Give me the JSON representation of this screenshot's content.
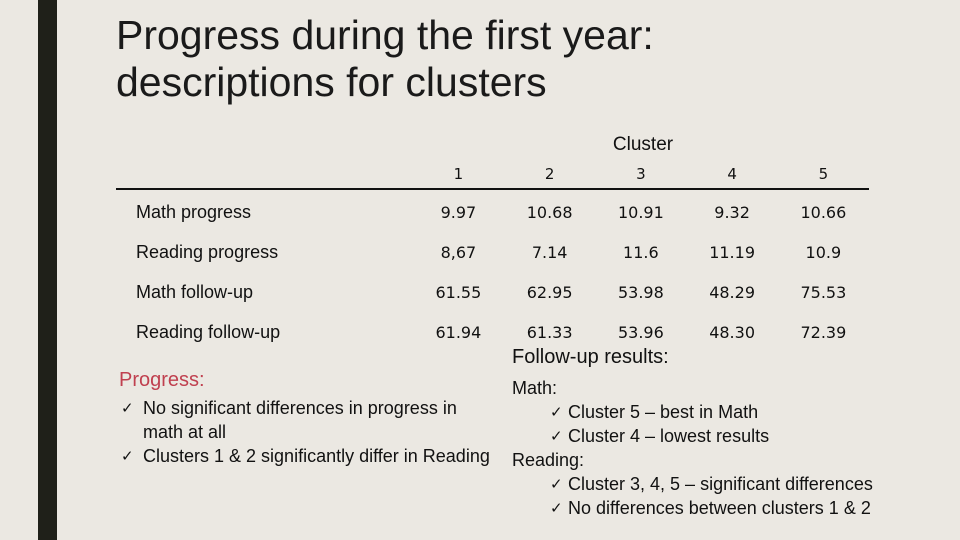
{
  "title": {
    "line1": "Progress during the first year:",
    "line2": "descriptions for clusters"
  },
  "table": {
    "group_header": "Cluster",
    "columns": [
      "1",
      "2",
      "3",
      "4",
      "5"
    ],
    "rows": [
      {
        "label": "Math progress",
        "values": [
          "9.97",
          "10.68",
          "10.91",
          "9.32",
          "10.66"
        ]
      },
      {
        "label": "Reading progress",
        "values": [
          "8,67",
          "7.14",
          "11.6",
          "11.19",
          "10.9"
        ]
      },
      {
        "label": "Math follow-up",
        "values": [
          "61.55",
          "62.95",
          "53.98",
          "48.29",
          "75.53"
        ]
      },
      {
        "label": "Reading follow-up",
        "values": [
          "61.94",
          "61.33",
          "53.96",
          "48.30",
          "72.39"
        ]
      }
    ]
  },
  "progress": {
    "heading": "Progress:",
    "heading_color": "#c0404f",
    "items": [
      "No significant differences in progress in math at all",
      "Clusters 1 & 2 significantly differ in Reading"
    ]
  },
  "followup": {
    "heading": "Follow-up results:",
    "math_label": "Math:",
    "math_items": [
      "Cluster 5 – best in Math",
      "Cluster 4 – lowest results"
    ],
    "reading_label": "Reading:",
    "reading_items": [
      "Cluster 3, 4, 5 – significant differences",
      "No differences between clusters 1 & 2"
    ]
  },
  "icons": {
    "bullet": "check-icon",
    "bullet_glyph": "✓"
  }
}
